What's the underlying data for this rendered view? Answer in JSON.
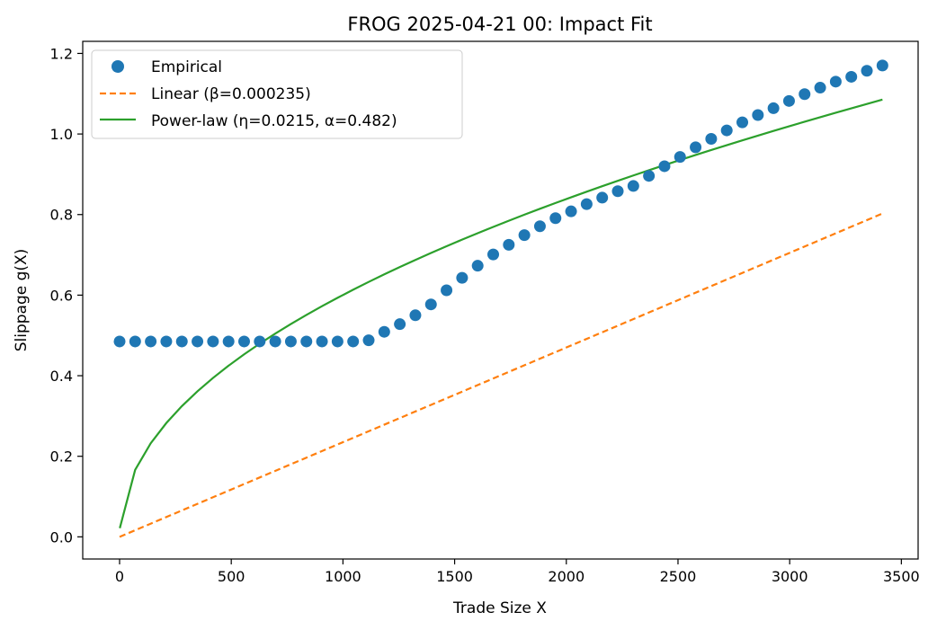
{
  "chart_data": {
    "type": "scatter",
    "title": "FROG 2025-04-21 00: Impact Fit",
    "xlabel": "Trade Size X",
    "ylabel": "Slippage g(X)",
    "xlim": [
      -165,
      3575
    ],
    "ylim": [
      -0.055,
      1.23
    ],
    "xticks": [
      0,
      500,
      1000,
      1500,
      2000,
      2500,
      3000,
      3500
    ],
    "xtick_labels": [
      "0",
      "500",
      "1000",
      "1500",
      "2000",
      "2500",
      "3000",
      "3500"
    ],
    "yticks": [
      0.0,
      0.2,
      0.4,
      0.6,
      0.8,
      1.0,
      1.2
    ],
    "ytick_labels": [
      "0.0",
      "0.2",
      "0.4",
      "0.6",
      "0.8",
      "1.0",
      "1.2"
    ],
    "grid": false,
    "legend_position": "top-left",
    "series": [
      {
        "name": "Empirical",
        "kind": "markers",
        "color": "#1f77b4",
        "x": [
          0,
          69.7,
          139.4,
          209.1,
          278.8,
          348.5,
          418.2,
          487.9,
          557.6,
          627.3,
          697,
          766.7,
          836.4,
          906.1,
          975.8,
          1045.5,
          1115.2,
          1184.9,
          1254.6,
          1324.3,
          1394,
          1463.7,
          1533.4,
          1603.1,
          1672.8,
          1742.5,
          1812.2,
          1881.9,
          1951.6,
          2021.3,
          2091,
          2160.7,
          2230.4,
          2300.1,
          2369.8,
          2439.5,
          2509.2,
          2578.9,
          2648.6,
          2718.3,
          2788,
          2857.7,
          2927.4,
          2997.1,
          3066.8,
          3136.5,
          3206.2,
          3275.9,
          3345.6,
          3415.3
        ],
        "y": [
          0.485,
          0.485,
          0.485,
          0.485,
          0.485,
          0.485,
          0.485,
          0.485,
          0.485,
          0.485,
          0.485,
          0.485,
          0.485,
          0.485,
          0.485,
          0.485,
          0.488,
          0.509,
          0.528,
          0.55,
          0.577,
          0.612,
          0.643,
          0.673,
          0.701,
          0.725,
          0.749,
          0.771,
          0.791,
          0.808,
          0.826,
          0.842,
          0.858,
          0.871,
          0.896,
          0.92,
          0.943,
          0.967,
          0.988,
          1.009,
          1.029,
          1.047,
          1.064,
          1.082,
          1.099,
          1.115,
          1.13,
          1.142,
          1.157,
          1.17
        ]
      },
      {
        "name": "Linear (β=0.000235)",
        "kind": "dashed-line",
        "color": "#ff7f0e",
        "slope": 0.000235,
        "x_range": [
          0,
          3415.3
        ]
      },
      {
        "name": "Power-law (η=0.0215, α=0.482)",
        "kind": "solid-line",
        "color": "#2ca02c",
        "eta": 0.0215,
        "alpha": 0.482,
        "x_range": [
          1,
          3415.3
        ]
      }
    ]
  }
}
